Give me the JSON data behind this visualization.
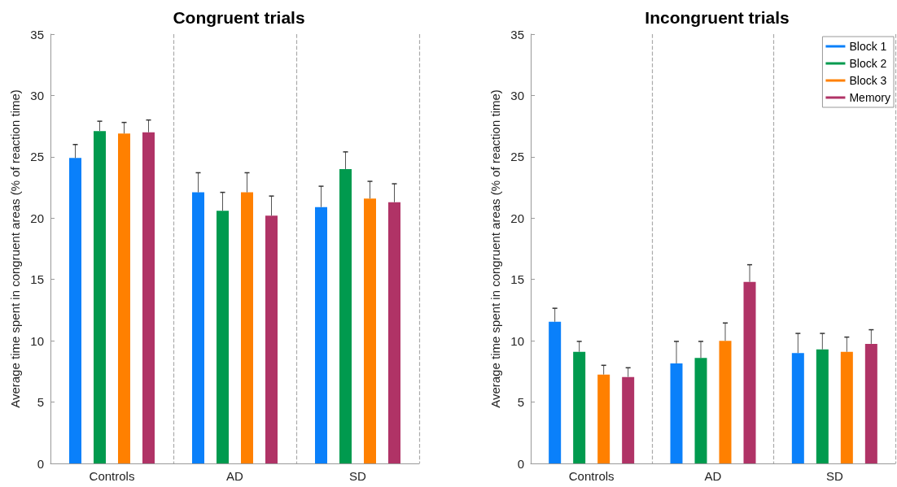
{
  "chart_data": [
    {
      "type": "bar",
      "title": "Congruent trials",
      "ylabel": "Average time spent in congruent areas (% of reaction time)",
      "categories": [
        "Controls",
        "AD",
        "SD"
      ],
      "series": [
        {
          "color": "#0a80fa",
          "values": [
            24.9,
            22.1,
            20.9
          ],
          "errors": [
            [
              24.9,
              26.0
            ],
            [
              22.1,
              23.7
            ],
            [
              20.9,
              22.6
            ]
          ]
        },
        {
          "color": "#009a4e",
          "values": [
            27.1,
            20.6,
            24.0
          ],
          "errors": [
            [
              27.1,
              27.9
            ],
            [
              20.6,
              22.1
            ],
            [
              24.0,
              25.4
            ]
          ]
        },
        {
          "color": "#ff8000",
          "values": [
            26.9,
            22.1,
            21.6
          ],
          "errors": [
            [
              26.9,
              27.8
            ],
            [
              22.1,
              23.7
            ],
            [
              21.6,
              23.0
            ]
          ]
        },
        {
          "color": "#b03366",
          "values": [
            27.0,
            20.2,
            21.3
          ],
          "errors": [
            [
              27.0,
              28.0
            ],
            [
              20.2,
              21.8
            ],
            [
              21.3,
              22.8
            ]
          ]
        }
      ],
      "ylim": [
        0,
        35
      ],
      "yticks": [
        0,
        5,
        10,
        15,
        20,
        25,
        30,
        35
      ],
      "grid": "x",
      "legend": false
    },
    {
      "type": "bar",
      "title": "Incongruent trials",
      "ylabel": "Average time spent in congruent areas (% of reaction time)",
      "categories": [
        "Controls",
        "AD",
        "SD"
      ],
      "series": [
        {
          "name": "Block 1",
          "color": "#0a80fa",
          "values": [
            11.55,
            8.15,
            9.0
          ],
          "errors": [
            [
              11.55,
              12.65
            ],
            [
              8.15,
              9.95
            ],
            [
              9.0,
              10.6
            ]
          ]
        },
        {
          "name": "Block 2",
          "color": "#009a4e",
          "values": [
            9.1,
            8.6,
            9.3
          ],
          "errors": [
            [
              9.1,
              9.95
            ],
            [
              8.6,
              9.95
            ],
            [
              9.3,
              10.6
            ]
          ]
        },
        {
          "name": "Block 3",
          "color": "#ff8000",
          "values": [
            7.25,
            10.0,
            9.1
          ],
          "errors": [
            [
              7.25,
              8.0
            ],
            [
              10.0,
              11.45
            ],
            [
              9.1,
              10.3
            ]
          ]
        },
        {
          "name": "Memory",
          "color": "#b03366",
          "values": [
            7.05,
            14.8,
            9.75
          ],
          "errors": [
            [
              7.05,
              7.8
            ],
            [
              14.8,
              16.2
            ],
            [
              9.75,
              10.9
            ]
          ]
        }
      ],
      "ylim": [
        0,
        35
      ],
      "yticks": [
        0,
        5,
        10,
        15,
        20,
        25,
        30,
        35
      ],
      "grid": "x",
      "legend": "top right"
    }
  ]
}
